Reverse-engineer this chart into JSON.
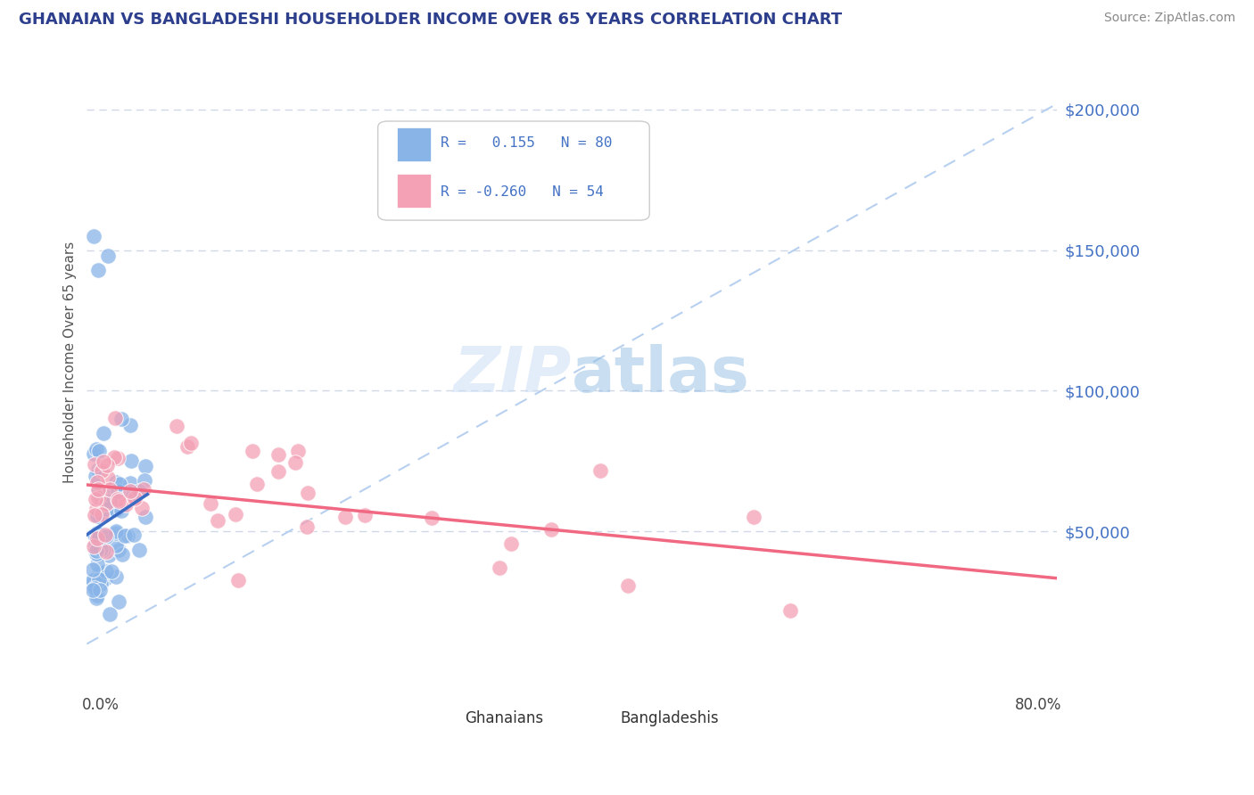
{
  "title": "GHANAIAN VS BANGLADESHI HOUSEHOLDER INCOME OVER 65 YEARS CORRELATION CHART",
  "source": "Source: ZipAtlas.com",
  "ylabel": "Householder Income Over 65 years",
  "watermark": "ZIPatlas",
  "ghanaian_R": 0.155,
  "ghanaian_N": 80,
  "bangladeshi_R": -0.26,
  "bangladeshi_N": 54,
  "ytick_labels": [
    "$50,000",
    "$100,000",
    "$150,000",
    "$200,000"
  ],
  "ytick_values": [
    50000,
    100000,
    150000,
    200000
  ],
  "xlim": [
    0.0,
    0.8
  ],
  "ylim": [
    0,
    220000
  ],
  "ghanaian_color": "#88b4e8",
  "bangladeshi_color": "#f4a0b5",
  "ghanaian_line_color": "#3a6bc4",
  "bangladeshi_line_color": "#f06882",
  "dashed_line_color": "#b8d0f0",
  "background_color": "#ffffff",
  "grid_color": "#d0d8e8",
  "right_tick_color": "#4472c4",
  "title_color": "#2c3e8c",
  "source_color": "#888888"
}
